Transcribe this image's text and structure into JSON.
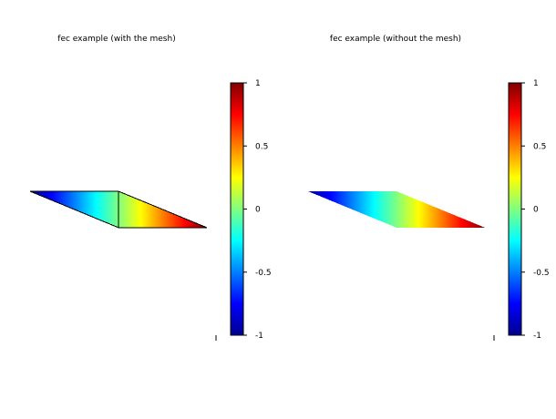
{
  "chart_data": [
    {
      "type": "heatmap",
      "title": "fec example (with the mesh)",
      "mesh": true,
      "colormap": "jet",
      "nodes": [
        {
          "id": 1,
          "x": 0,
          "y": 0,
          "value": -1
        },
        {
          "id": 2,
          "x": 1,
          "y": 0,
          "value": 0
        },
        {
          "id": 3,
          "x": 1,
          "y": -0.42,
          "value": 0
        },
        {
          "id": 4,
          "x": 2,
          "y": -0.42,
          "value": 1
        }
      ],
      "triangles": [
        [
          1,
          2,
          3
        ],
        [
          2,
          4,
          3
        ]
      ],
      "colorbar": {
        "min": -1,
        "max": 1,
        "ticks": [
          "1",
          "0.5",
          "0",
          "-0.5",
          "-1"
        ],
        "tick_values": [
          1,
          0.5,
          0,
          -0.5,
          -1
        ]
      }
    },
    {
      "type": "heatmap",
      "title": "fec example (without the mesh)",
      "mesh": false,
      "colormap": "jet",
      "nodes": [
        {
          "id": 1,
          "x": 0,
          "y": 0,
          "value": -1
        },
        {
          "id": 2,
          "x": 1,
          "y": 0,
          "value": 0
        },
        {
          "id": 3,
          "x": 1,
          "y": -0.42,
          "value": 0
        },
        {
          "id": 4,
          "x": 2,
          "y": -0.42,
          "value": 1
        }
      ],
      "triangles": [
        [
          1,
          2,
          3
        ],
        [
          2,
          4,
          3
        ]
      ],
      "colorbar": {
        "min": -1,
        "max": 1,
        "ticks": [
          "1",
          "0.5",
          "0",
          "-0.5",
          "-1"
        ],
        "tick_values": [
          1,
          0.5,
          0,
          -0.5,
          -1
        ]
      }
    }
  ]
}
